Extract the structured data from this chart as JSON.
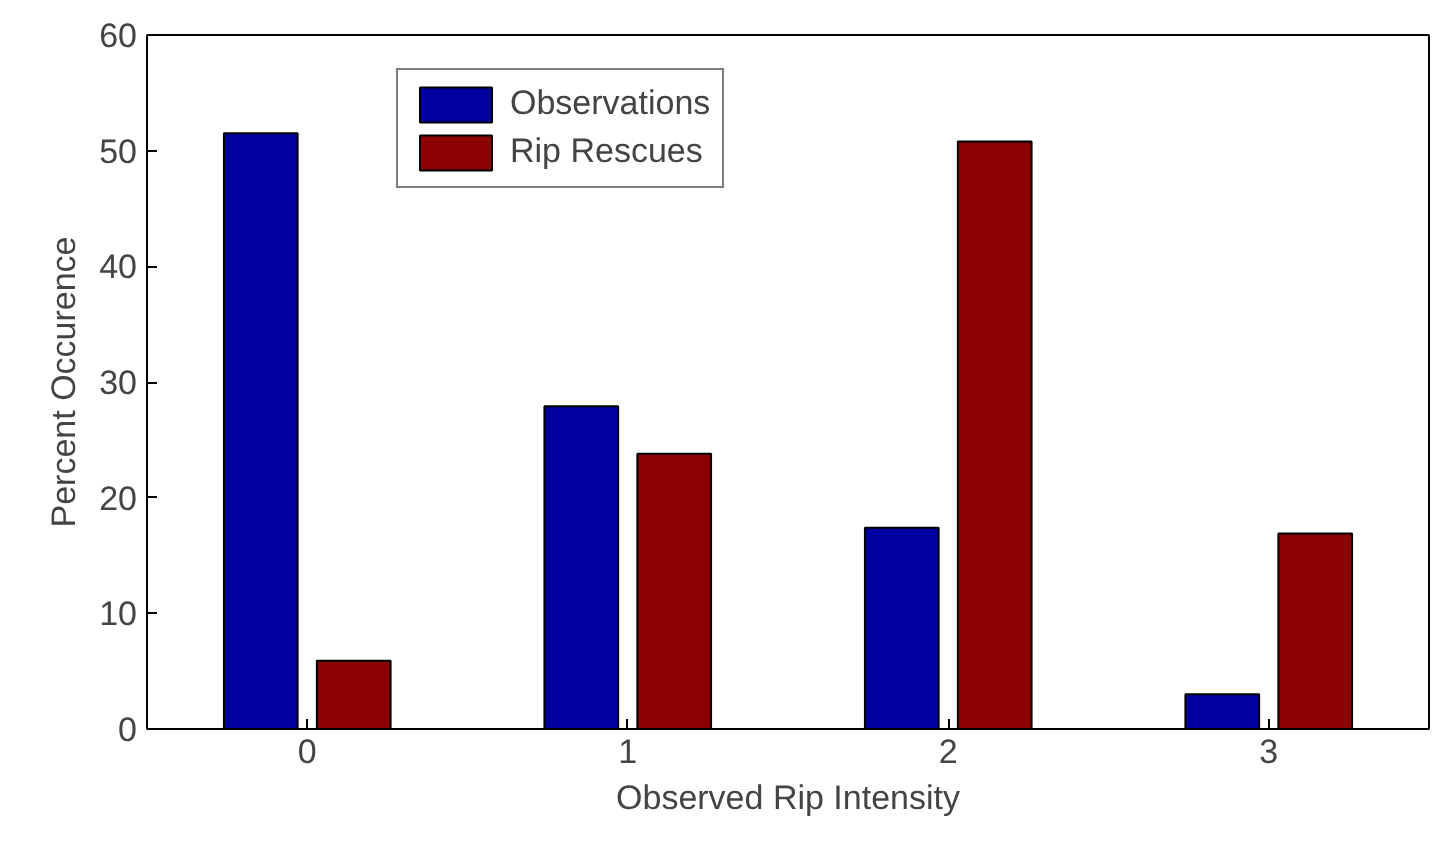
{
  "chart_data": {
    "type": "bar",
    "xlabel": "Observed Rip Intensity",
    "ylabel": "Percent Occurence",
    "categories": [
      "0",
      "1",
      "2",
      "3"
    ],
    "series": [
      {
        "name": "Observations",
        "color": "#0000a0",
        "values": [
          51.5,
          27.9,
          17.4,
          3.0
        ]
      },
      {
        "name": "Rip Rescues",
        "color": "#8b0000",
        "values": [
          5.9,
          23.8,
          50.8,
          16.9
        ]
      }
    ],
    "ylim": [
      0,
      60
    ],
    "yticks": [
      0,
      10,
      20,
      30,
      40,
      50,
      60
    ],
    "grid": false,
    "legend": "top"
  }
}
